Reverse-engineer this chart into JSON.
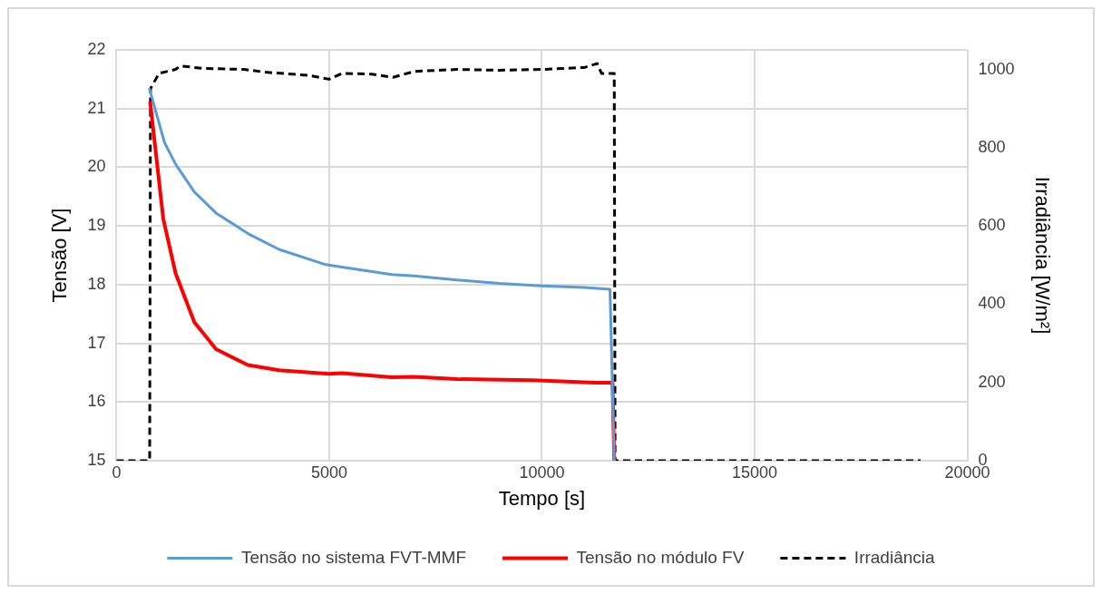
{
  "chart_data": {
    "type": "line",
    "xlabel": "Tempo [s]",
    "ylabel": "Tensão [V]",
    "y2label": "Irradiância [W/m²]",
    "xlim": [
      0,
      20000
    ],
    "xticks": [
      0,
      5000,
      10000,
      15000,
      20000
    ],
    "ylim": [
      15,
      22
    ],
    "yticks": [
      15,
      16,
      17,
      18,
      19,
      20,
      21,
      22
    ],
    "y2lim": [
      0,
      1050
    ],
    "y2ticks": [
      0,
      200,
      400,
      600,
      800,
      1000
    ],
    "grid": true,
    "legend": "bottom",
    "marker": "none",
    "series": [
      {
        "name": "Tensão no sistema FVT-MMF",
        "color": "#5b9bd5",
        "line_style": "solid",
        "x": [
          770,
          1130,
          1390,
          1830,
          2340,
          3090,
          3820,
          4920,
          5300,
          6470,
          7000,
          8000,
          9000,
          10000,
          11000,
          11600,
          11700
        ],
        "values": [
          21.35,
          20.42,
          20.05,
          19.58,
          19.22,
          18.87,
          18.6,
          18.34,
          18.3,
          18.17,
          18.15,
          18.08,
          18.02,
          17.98,
          17.95,
          17.92,
          15
        ]
      },
      {
        "name": "Tensão no módulo FV",
        "color": "#ff0000",
        "line_style": "solid",
        "x": [
          790,
          1100,
          1390,
          1830,
          2340,
          3090,
          3820,
          4990,
          5300,
          6470,
          7000,
          8000,
          9780,
          11260,
          11660,
          11700
        ],
        "values": [
          21.12,
          19.12,
          18.19,
          17.36,
          16.9,
          16.63,
          16.54,
          16.48,
          16.49,
          16.42,
          16.43,
          16.39,
          16.37,
          16.33,
          16.33,
          15
        ]
      },
      {
        "name": "Irradiância",
        "color": "#000000",
        "line_style": "dashed",
        "axis": "y2",
        "x": [
          0,
          780,
          800,
          1000,
          1390,
          1500,
          2000,
          3000,
          3500,
          4500,
          5000,
          5300,
          6000,
          6500,
          7000,
          8000,
          9000,
          10000,
          11000,
          11300,
          11400,
          11700,
          11720,
          12000,
          18900
        ],
        "values": [
          0,
          0,
          951,
          990,
          1000,
          1009,
          1003,
          1000,
          993,
          985,
          975,
          990,
          988,
          980,
          995,
          1000,
          998,
          1000,
          1005,
          1015,
          990,
          990,
          0,
          0,
          0
        ]
      }
    ]
  }
}
